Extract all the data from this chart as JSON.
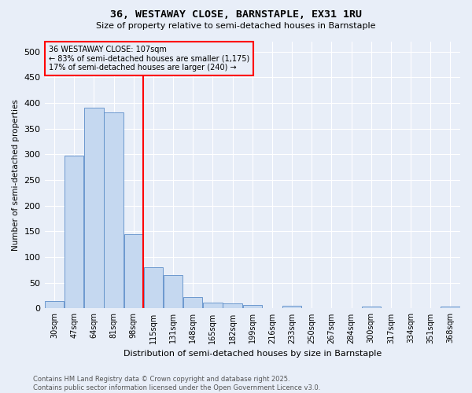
{
  "title1": "36, WESTAWAY CLOSE, BARNSTAPLE, EX31 1RU",
  "title2": "Size of property relative to semi-detached houses in Barnstaple",
  "xlabel": "Distribution of semi-detached houses by size in Barnstaple",
  "ylabel": "Number of semi-detached properties",
  "bins": [
    "30sqm",
    "47sqm",
    "64sqm",
    "81sqm",
    "98sqm",
    "115sqm",
    "131sqm",
    "148sqm",
    "165sqm",
    "182sqm",
    "199sqm",
    "216sqm",
    "233sqm",
    "250sqm",
    "267sqm",
    "284sqm",
    "300sqm",
    "317sqm",
    "334sqm",
    "351sqm",
    "368sqm"
  ],
  "values": [
    15,
    297,
    390,
    382,
    145,
    80,
    65,
    22,
    12,
    10,
    7,
    0,
    6,
    0,
    0,
    0,
    4,
    0,
    0,
    0,
    3
  ],
  "bar_color": "#c5d8f0",
  "bar_edge_color": "#5b8dc8",
  "vline_color": "red",
  "annotation_title": "36 WESTAWAY CLOSE: 107sqm",
  "annotation_line1": "← 83% of semi-detached houses are smaller (1,175)",
  "annotation_line2": "17% of semi-detached houses are larger (240) →",
  "annotation_box_color": "red",
  "ylim": [
    0,
    520
  ],
  "yticks": [
    0,
    50,
    100,
    150,
    200,
    250,
    300,
    350,
    400,
    450,
    500
  ],
  "footer": "Contains HM Land Registry data © Crown copyright and database right 2025.\nContains public sector information licensed under the Open Government Licence v3.0.",
  "bg_color": "#e8eef8"
}
